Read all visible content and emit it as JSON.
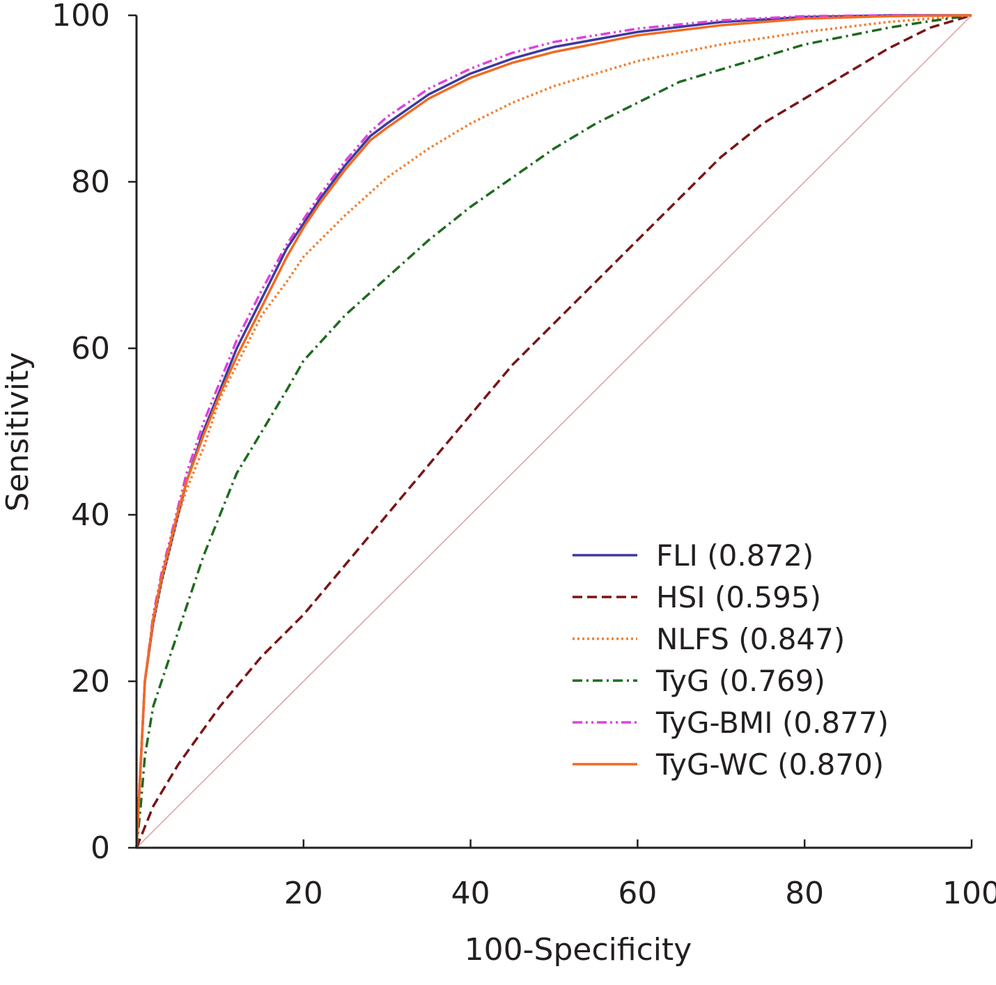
{
  "chart_data": {
    "type": "line",
    "title": "",
    "xlabel": "100-Specificity",
    "ylabel": "Sensitivity",
    "xlim": [
      0,
      100
    ],
    "ylim": [
      0,
      100
    ],
    "x_ticks": [
      20,
      40,
      60,
      80,
      100
    ],
    "y_ticks": [
      0,
      20,
      40,
      60,
      80,
      100
    ],
    "grid": false,
    "legend_position": "bottom-right",
    "reference_line": {
      "name": "chance",
      "color": "#d9a0a0",
      "points": [
        [
          0,
          0
        ],
        [
          100,
          100
        ]
      ]
    },
    "series": [
      {
        "name": "FLI (0.872)",
        "color": "#3b3ba0",
        "dash": "solid",
        "points": [
          [
            0,
            0
          ],
          [
            0.5,
            10
          ],
          [
            1,
            20
          ],
          [
            2,
            27
          ],
          [
            3,
            32
          ],
          [
            4,
            36
          ],
          [
            5,
            40
          ],
          [
            6,
            44
          ],
          [
            8,
            50
          ],
          [
            10,
            55
          ],
          [
            12,
            60
          ],
          [
            15,
            66
          ],
          [
            18,
            72
          ],
          [
            20,
            75
          ],
          [
            22,
            78
          ],
          [
            25,
            82
          ],
          [
            28,
            85.5
          ],
          [
            30,
            87
          ],
          [
            35,
            90.5
          ],
          [
            40,
            93
          ],
          [
            45,
            94.8
          ],
          [
            50,
            96.2
          ],
          [
            60,
            98
          ],
          [
            70,
            99.2
          ],
          [
            80,
            99.8
          ],
          [
            90,
            100
          ],
          [
            100,
            100
          ]
        ]
      },
      {
        "name": "HSI (0.595)",
        "color": "#7a1515",
        "dash": "dashed",
        "points": [
          [
            0,
            0
          ],
          [
            2,
            5
          ],
          [
            5,
            10
          ],
          [
            10,
            17
          ],
          [
            15,
            23
          ],
          [
            20,
            28
          ],
          [
            25,
            34
          ],
          [
            30,
            40
          ],
          [
            35,
            46
          ],
          [
            40,
            52
          ],
          [
            45,
            58
          ],
          [
            50,
            63
          ],
          [
            55,
            68
          ],
          [
            60,
            73
          ],
          [
            65,
            78
          ],
          [
            70,
            83
          ],
          [
            75,
            87
          ],
          [
            80,
            90
          ],
          [
            85,
            93
          ],
          [
            90,
            96
          ],
          [
            95,
            98.5
          ],
          [
            100,
            100
          ]
        ]
      },
      {
        "name": "NLFS (0.847)",
        "color": "#f07f2f",
        "dash": "dotted",
        "points": [
          [
            0,
            0
          ],
          [
            0.5,
            10
          ],
          [
            1,
            20
          ],
          [
            2,
            27
          ],
          [
            3,
            32
          ],
          [
            4,
            36
          ],
          [
            5,
            40
          ],
          [
            6,
            43
          ],
          [
            8,
            48
          ],
          [
            10,
            54
          ],
          [
            12,
            58
          ],
          [
            15,
            64
          ],
          [
            18,
            68
          ],
          [
            20,
            71
          ],
          [
            25,
            76
          ],
          [
            30,
            80.5
          ],
          [
            35,
            84
          ],
          [
            40,
            87
          ],
          [
            45,
            89.5
          ],
          [
            50,
            91.5
          ],
          [
            55,
            93
          ],
          [
            60,
            94.5
          ],
          [
            70,
            96.5
          ],
          [
            80,
            98
          ],
          [
            90,
            99.2
          ],
          [
            100,
            100
          ]
        ]
      },
      {
        "name": "TyG (0.769)",
        "color": "#1e6b1e",
        "dash": "dashdot",
        "points": [
          [
            0,
            0
          ],
          [
            0.5,
            5
          ],
          [
            1,
            11
          ],
          [
            2,
            17
          ],
          [
            4,
            23
          ],
          [
            6,
            29
          ],
          [
            8,
            35
          ],
          [
            10,
            40
          ],
          [
            12,
            45
          ],
          [
            15,
            50
          ],
          [
            18,
            55
          ],
          [
            20,
            58.5
          ],
          [
            25,
            64
          ],
          [
            30,
            68.5
          ],
          [
            35,
            73
          ],
          [
            40,
            77
          ],
          [
            45,
            80.5
          ],
          [
            50,
            84
          ],
          [
            55,
            87
          ],
          [
            60,
            89.5
          ],
          [
            65,
            92
          ],
          [
            70,
            93.5
          ],
          [
            75,
            95
          ],
          [
            80,
            96.5
          ],
          [
            85,
            97.5
          ],
          [
            90,
            98.5
          ],
          [
            95,
            99.3
          ],
          [
            100,
            100
          ]
        ]
      },
      {
        "name": "TyG-BMI (0.877)",
        "color": "#e040e0",
        "dash": "dashdotdot",
        "points": [
          [
            0,
            0
          ],
          [
            0.5,
            10
          ],
          [
            1,
            20
          ],
          [
            2,
            28
          ],
          [
            3,
            33
          ],
          [
            4,
            37
          ],
          [
            5,
            41
          ],
          [
            6,
            45
          ],
          [
            8,
            51
          ],
          [
            10,
            56
          ],
          [
            12,
            61
          ],
          [
            15,
            67
          ],
          [
            18,
            72.5
          ],
          [
            20,
            75.5
          ],
          [
            22,
            78.5
          ],
          [
            25,
            82.5
          ],
          [
            28,
            86
          ],
          [
            30,
            87.8
          ],
          [
            35,
            91.2
          ],
          [
            40,
            93.6
          ],
          [
            45,
            95.5
          ],
          [
            50,
            96.8
          ],
          [
            60,
            98.4
          ],
          [
            70,
            99.4
          ],
          [
            80,
            99.9
          ],
          [
            90,
            100
          ],
          [
            100,
            100
          ]
        ]
      },
      {
        "name": "TyG-WC (0.870)",
        "color": "#f26a21",
        "dash": "solid",
        "points": [
          [
            0,
            0
          ],
          [
            0.5,
            10
          ],
          [
            1,
            20
          ],
          [
            2,
            27.5
          ],
          [
            3,
            32.5
          ],
          [
            4,
            36.5
          ],
          [
            5,
            40.5
          ],
          [
            6,
            44
          ],
          [
            8,
            49.5
          ],
          [
            10,
            54.5
          ],
          [
            12,
            59
          ],
          [
            15,
            65
          ],
          [
            18,
            71
          ],
          [
            20,
            74.5
          ],
          [
            22,
            77.5
          ],
          [
            25,
            81.5
          ],
          [
            28,
            85
          ],
          [
            30,
            86.5
          ],
          [
            35,
            90
          ],
          [
            40,
            92.5
          ],
          [
            45,
            94.3
          ],
          [
            50,
            95.6
          ],
          [
            60,
            97.6
          ],
          [
            70,
            98.8
          ],
          [
            80,
            99.6
          ],
          [
            90,
            99.9
          ],
          [
            100,
            100
          ]
        ]
      }
    ]
  }
}
